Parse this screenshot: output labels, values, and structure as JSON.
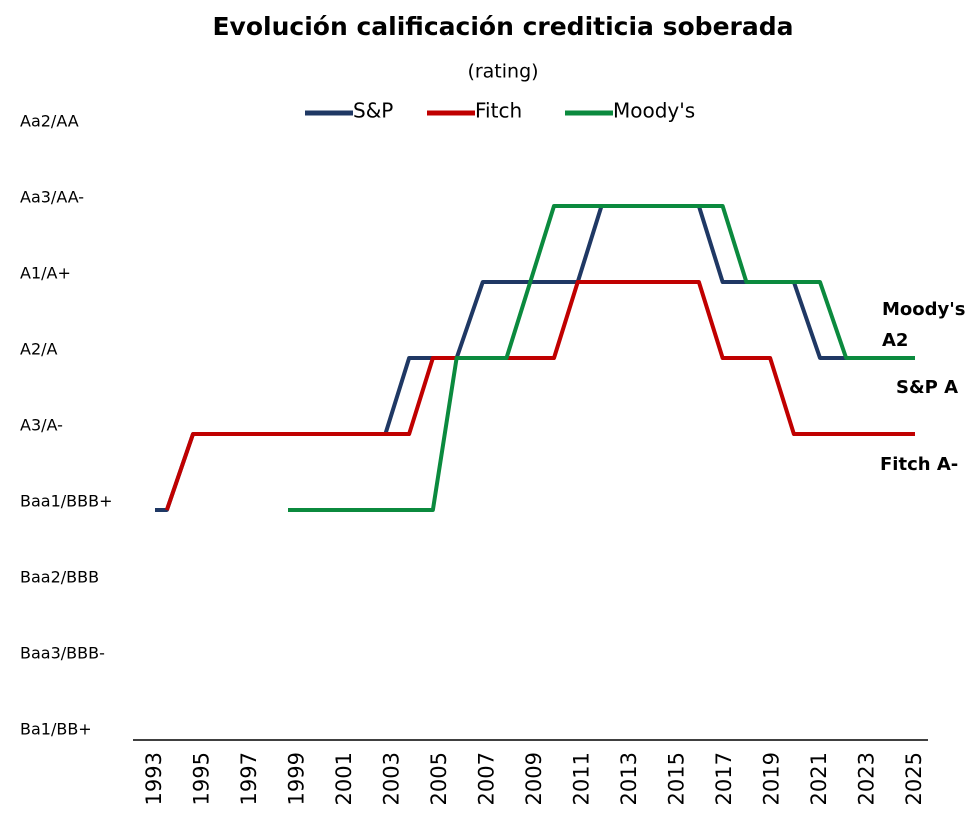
{
  "chart_data": {
    "type": "line",
    "title": "Evolución calificación crediticia soberada",
    "subtitle": "(rating)",
    "xlim": [
      1993,
      2025
    ],
    "xticks": [
      1993,
      1995,
      1997,
      1999,
      2001,
      2003,
      2005,
      2007,
      2009,
      2011,
      2013,
      2015,
      2017,
      2019,
      2021,
      2023,
      2025
    ],
    "ylim": [
      1,
      9
    ],
    "yticks": [
      {
        "value": 1,
        "label": "Ba1/BB+"
      },
      {
        "value": 2,
        "label": "Baa3/BBB-"
      },
      {
        "value": 3,
        "label": "Baa2/BBB"
      },
      {
        "value": 4,
        "label": "Baa1/BBB+"
      },
      {
        "value": 5,
        "label": "A3/A-"
      },
      {
        "value": 6,
        "label": "A2/A"
      },
      {
        "value": 7,
        "label": "A1/A+"
      },
      {
        "value": 8,
        "label": "Aa3/AA-"
      },
      {
        "value": 9,
        "label": "Aa2/AA"
      }
    ],
    "legend": "top",
    "series": [
      {
        "name": "S&P",
        "color": "#1f3864",
        "x": [
          1993,
          1993.5,
          1994.6,
          2002.7,
          2003.7,
          2005.7,
          2006.8,
          2010.8,
          2011.8,
          2015.9,
          2016.9,
          2019.9,
          2021,
          2025
        ],
        "values": [
          4,
          4,
          5,
          5,
          6,
          6,
          7,
          7,
          8,
          8,
          7,
          7,
          6,
          6
        ]
      },
      {
        "name": "Fitch",
        "color": "#c00000",
        "x": [
          1993.5,
          1994.6,
          2003.7,
          2004.7,
          2009.8,
          2010.8,
          2015.9,
          2016.9,
          2018.9,
          2019.9,
          2025
        ],
        "values": [
          4,
          5,
          5,
          6,
          6,
          7,
          7,
          6,
          6,
          5,
          5
        ]
      },
      {
        "name": "Moody's",
        "color": "#0b8a3e",
        "x": [
          1998.6,
          2004.7,
          2005.7,
          2007.8,
          2009.8,
          2016.9,
          2017.9,
          2021,
          2022.1,
          2025
        ],
        "values": [
          4,
          4,
          6,
          6,
          8,
          8,
          7,
          7,
          6,
          6
        ]
      }
    ],
    "annotations": [
      {
        "lines": [
          "Moody's",
          "A2"
        ],
        "color": "#0b8a3e"
      },
      {
        "lines": [
          "S&P A"
        ],
        "color": "#1f3864"
      },
      {
        "lines": [
          "Fitch A-"
        ],
        "color": "#c00000"
      }
    ]
  }
}
